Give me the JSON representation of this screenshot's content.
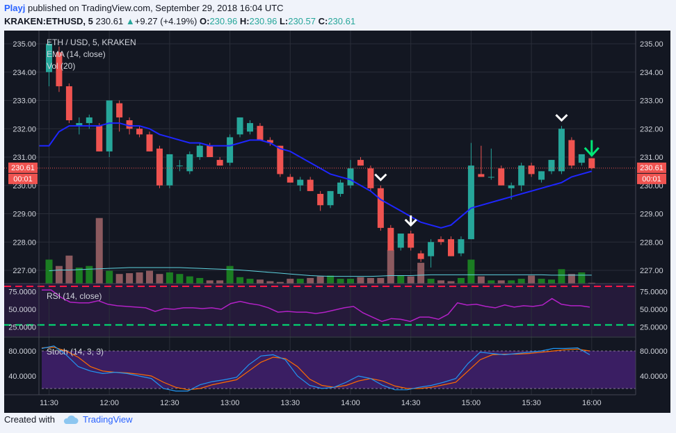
{
  "header": {
    "user": "Playj",
    "published": " published on TradingView.com, September 29, 2018 16:04 UTC",
    "symbol": "KRAKEN:ETHUSD, 5",
    "price": "230.61",
    "change_arrow": "▲",
    "change": "+9.27 (+4.19%)",
    "o_label": "O:",
    "o": "230.96",
    "h_label": "H:",
    "h": "230.96",
    "l_label": "L:",
    "l": "230.57",
    "c_label": "C:",
    "c": "230.61"
  },
  "footer": {
    "created_with": "Created with",
    "brand": "TradingView",
    "brand_icon": "cloud-logo-icon"
  },
  "colors": {
    "background": "#131722",
    "bull": "#26a69a",
    "bear": "#ef5350",
    "ema": "#1e26ff",
    "rsi": "#b321c7",
    "stoch_k": "#2196f3",
    "stoch_d": "#ff6d00",
    "vol_up": "#1b7d22",
    "vol_down": "#8c5a5f"
  },
  "chart_data": {
    "type": "candlestick",
    "title": "ETH / USD, 5, KRAKEN",
    "indicators": [
      "EMA (14, close)",
      "Vol (20)"
    ],
    "price_ylim": [
      226.6,
      235.3
    ],
    "price_ticks": [
      "235.00",
      "234.00",
      "233.00",
      "232.00",
      "231.00",
      "230.00",
      "229.00",
      "228.00",
      "227.00"
    ],
    "last_price_label": "230.61",
    "countdown_label": "00:01",
    "x_ticks": [
      "11:30",
      "12:00",
      "12:30",
      "13:00",
      "13:30",
      "14:00",
      "14:30",
      "15:00",
      "15:30",
      "16:00"
    ],
    "candles": [
      {
        "time": "11:30",
        "o": 234.0,
        "h": 235.1,
        "l": 233.5,
        "c": 235.0
      },
      {
        "time": "11:35",
        "o": 234.7,
        "h": 234.9,
        "l": 233.3,
        "c": 233.5
      },
      {
        "time": "11:40",
        "o": 233.5,
        "h": 233.6,
        "l": 232.2,
        "c": 232.3
      },
      {
        "time": "11:45",
        "o": 232.1,
        "h": 232.4,
        "l": 231.8,
        "c": 232.2
      },
      {
        "time": "11:50",
        "o": 232.2,
        "h": 232.5,
        "l": 232.0,
        "c": 232.4
      },
      {
        "time": "11:55",
        "o": 232.1,
        "h": 232.2,
        "l": 231.2,
        "c": 231.2
      },
      {
        "time": "12:00",
        "o": 231.2,
        "h": 233.0,
        "l": 231.0,
        "c": 233.0
      },
      {
        "time": "12:05",
        "o": 232.9,
        "h": 233.0,
        "l": 231.9,
        "c": 232.4
      },
      {
        "time": "12:10",
        "o": 232.3,
        "h": 232.4,
        "l": 231.8,
        "c": 232.0
      },
      {
        "time": "12:15",
        "o": 232.0,
        "h": 232.1,
        "l": 231.7,
        "c": 231.8
      },
      {
        "time": "12:20",
        "o": 231.8,
        "h": 231.9,
        "l": 231.2,
        "c": 231.2
      },
      {
        "time": "12:25",
        "o": 231.3,
        "h": 231.4,
        "l": 229.9,
        "c": 230.0
      },
      {
        "time": "12:30",
        "o": 230.0,
        "h": 231.1,
        "l": 229.9,
        "c": 231.1
      },
      {
        "time": "12:35",
        "o": 230.7,
        "h": 230.9,
        "l": 230.5,
        "c": 230.7
      },
      {
        "time": "12:40",
        "o": 230.5,
        "h": 231.2,
        "l": 230.4,
        "c": 231.1
      },
      {
        "time": "12:45",
        "o": 231.0,
        "h": 231.5,
        "l": 230.9,
        "c": 231.4
      },
      {
        "time": "12:50",
        "o": 231.4,
        "h": 231.5,
        "l": 231.0,
        "c": 231.0
      },
      {
        "time": "12:55",
        "o": 230.9,
        "h": 231.0,
        "l": 230.7,
        "c": 230.7
      },
      {
        "time": "13:00",
        "o": 230.8,
        "h": 231.8,
        "l": 230.7,
        "c": 231.7
      },
      {
        "time": "13:05",
        "o": 231.8,
        "h": 232.4,
        "l": 231.7,
        "c": 232.4
      },
      {
        "time": "13:10",
        "o": 231.9,
        "h": 232.3,
        "l": 231.8,
        "c": 232.2
      },
      {
        "time": "13:15",
        "o": 232.1,
        "h": 232.2,
        "l": 231.6,
        "c": 231.6
      },
      {
        "time": "13:20",
        "o": 231.6,
        "h": 231.7,
        "l": 231.4,
        "c": 231.5
      },
      {
        "time": "13:25",
        "o": 231.4,
        "h": 231.4,
        "l": 230.3,
        "c": 230.4
      },
      {
        "time": "13:30",
        "o": 230.3,
        "h": 230.4,
        "l": 230.1,
        "c": 230.1
      },
      {
        "time": "13:35",
        "o": 230.0,
        "h": 230.3,
        "l": 229.8,
        "c": 230.2
      },
      {
        "time": "13:40",
        "o": 230.2,
        "h": 230.3,
        "l": 229.8,
        "c": 229.8
      },
      {
        "time": "13:45",
        "o": 229.7,
        "h": 229.8,
        "l": 229.1,
        "c": 229.3
      },
      {
        "time": "13:50",
        "o": 229.3,
        "h": 229.8,
        "l": 229.2,
        "c": 229.8
      },
      {
        "time": "13:55",
        "o": 229.7,
        "h": 230.2,
        "l": 229.6,
        "c": 230.1
      },
      {
        "time": "14:00",
        "o": 230.0,
        "h": 230.9,
        "l": 229.9,
        "c": 230.6
      },
      {
        "time": "14:05",
        "o": 230.9,
        "h": 231.0,
        "l": 230.7,
        "c": 230.7
      },
      {
        "time": "14:10",
        "o": 230.6,
        "h": 230.7,
        "l": 229.8,
        "c": 229.9
      },
      {
        "time": "14:15",
        "o": 229.9,
        "h": 230.0,
        "l": 228.4,
        "c": 228.5
      },
      {
        "time": "14:20",
        "o": 228.5,
        "h": 228.6,
        "l": 227.7,
        "c": 227.7
      },
      {
        "time": "14:25",
        "o": 227.8,
        "h": 228.3,
        "l": 227.7,
        "c": 228.3
      },
      {
        "time": "14:30",
        "o": 228.3,
        "h": 228.4,
        "l": 227.7,
        "c": 227.8
      },
      {
        "time": "14:35",
        "o": 227.6,
        "h": 227.7,
        "l": 227.3,
        "c": 227.4
      },
      {
        "time": "14:40",
        "o": 227.5,
        "h": 228.1,
        "l": 227.1,
        "c": 228.0
      },
      {
        "time": "14:45",
        "o": 228.1,
        "h": 228.2,
        "l": 227.9,
        "c": 228.0
      },
      {
        "time": "14:50",
        "o": 228.1,
        "h": 228.2,
        "l": 227.5,
        "c": 227.5
      },
      {
        "time": "14:55",
        "o": 227.6,
        "h": 228.2,
        "l": 227.5,
        "c": 228.1
      },
      {
        "time": "15:00",
        "o": 228.1,
        "h": 231.5,
        "l": 228.1,
        "c": 230.7
      },
      {
        "time": "15:05",
        "o": 230.4,
        "h": 231.4,
        "l": 230.3,
        "c": 230.3
      },
      {
        "time": "15:10",
        "o": 230.3,
        "h": 231.3,
        "l": 230.2,
        "c": 230.3
      },
      {
        "time": "15:15",
        "o": 230.6,
        "h": 230.7,
        "l": 230.0,
        "c": 230.0
      },
      {
        "time": "15:20",
        "o": 229.9,
        "h": 230.1,
        "l": 229.5,
        "c": 230.0
      },
      {
        "time": "15:25",
        "o": 230.0,
        "h": 230.8,
        "l": 229.8,
        "c": 230.7
      },
      {
        "time": "15:30",
        "o": 230.7,
        "h": 230.8,
        "l": 230.3,
        "c": 230.4
      },
      {
        "time": "15:35",
        "o": 230.2,
        "h": 230.5,
        "l": 230.1,
        "c": 230.5
      },
      {
        "time": "15:40",
        "o": 230.5,
        "h": 230.9,
        "l": 230.4,
        "c": 230.9
      },
      {
        "time": "15:45",
        "o": 230.5,
        "h": 232.1,
        "l": 230.4,
        "c": 232.0
      },
      {
        "time": "15:50",
        "o": 231.6,
        "h": 231.7,
        "l": 230.6,
        "c": 230.7
      },
      {
        "time": "15:55",
        "o": 230.8,
        "h": 231.1,
        "l": 230.7,
        "c": 231.1
      },
      {
        "time": "16:00",
        "o": 230.96,
        "h": 230.96,
        "l": 230.57,
        "c": 230.61
      }
    ],
    "ema": [
      231.4,
      231.9,
      232.1,
      232.1,
      232.1,
      232.1,
      232.2,
      232.2,
      232.1,
      232.1,
      232.0,
      231.8,
      231.7,
      231.6,
      231.5,
      231.5,
      231.4,
      231.4,
      231.4,
      231.5,
      231.6,
      231.6,
      231.5,
      231.3,
      231.2,
      231.0,
      230.8,
      230.6,
      230.4,
      230.3,
      230.2,
      230.0,
      229.8,
      229.5,
      229.3,
      229.1,
      228.9,
      228.7,
      228.6,
      228.5,
      228.6,
      228.9,
      229.2,
      229.3,
      229.4,
      229.5,
      229.6,
      229.7,
      229.8,
      229.9,
      230.0,
      230.1,
      230.3,
      230.4,
      230.5
    ],
    "volume": [
      3.0,
      2.2,
      3.5,
      2.0,
      2.2,
      1.9,
      1.6,
      1.2,
      1.3,
      1.4,
      1.6,
      1.2,
      1.4,
      1.2,
      0.9,
      0.7,
      0.4,
      0.4,
      2.2,
      0.8,
      0.6,
      0.5,
      0.3,
      0.2,
      0.6,
      0.6,
      0.7,
      0.9,
      1.0,
      0.6,
      0.6,
      0.8,
      0.7,
      0.7,
      4.2,
      1.0,
      0.9,
      2.6,
      0.6,
      0.4,
      0.3,
      0.7,
      3.0,
      0.9,
      0.4,
      0.4,
      0.4,
      0.6,
      1.0,
      0.6,
      0.5,
      1.8,
      1.2,
      1.4,
      0.1
    ],
    "volume_big": {
      "index": 5,
      "value": 8.2
    },
    "volume_ma": [
      1.6,
      1.7,
      1.7,
      1.75,
      1.8,
      1.85,
      1.9,
      1.95,
      2.0,
      2.0,
      2.0,
      2.0,
      2.0,
      2.0,
      1.95,
      1.9,
      1.85,
      1.8,
      1.75,
      1.7,
      1.6,
      1.5,
      1.4,
      1.3,
      1.2,
      1.1,
      1.0,
      0.95,
      0.9,
      0.9,
      0.9,
      0.9,
      0.9,
      0.95,
      1.0,
      1.0,
      1.0,
      1.05,
      1.1,
      1.1,
      1.1,
      1.1,
      1.1,
      1.1,
      1.1,
      1.1,
      1.1,
      1.1,
      1.1,
      1.1,
      1.05,
      1.05,
      1.05,
      1.05,
      1.05
    ],
    "rsi": {
      "label": "RSI (14, close)",
      "ylim": [
        12,
        86
      ],
      "ticks": [
        "75.0000",
        "50.0000",
        "25.0000"
      ],
      "upper": 70,
      "lower": 30,
      "values": [
        77,
        77,
        67,
        60,
        59,
        59,
        62,
        57,
        55,
        54,
        53,
        52,
        47,
        51,
        50,
        52,
        52,
        51,
        52,
        50,
        58,
        61,
        58,
        56,
        52,
        46,
        47,
        46,
        46,
        44,
        46,
        49,
        52,
        54,
        45,
        39,
        33,
        37,
        36,
        33,
        39,
        39,
        36,
        43,
        59,
        56,
        57,
        54,
        52,
        56,
        53,
        55,
        54,
        56,
        65,
        57,
        55,
        55,
        53
      ]
    },
    "stoch": {
      "label": "Stoch (14, 3, 3)",
      "ylim": [
        10,
        100
      ],
      "ticks": [
        "80.0000",
        "40.0000"
      ],
      "upper": 80,
      "lower": 20,
      "k": [
        84,
        88,
        74,
        55,
        48,
        44,
        46,
        44,
        40,
        36,
        20,
        16,
        16,
        26,
        31,
        34,
        38,
        58,
        72,
        74,
        66,
        40,
        25,
        20,
        22,
        30,
        40,
        36,
        25,
        18,
        18,
        22,
        25,
        30,
        36,
        60,
        78,
        76,
        74,
        76,
        78,
        80,
        84,
        84,
        85,
        74
      ],
      "d": [
        85,
        86,
        80,
        70,
        55,
        48,
        46,
        45,
        43,
        40,
        30,
        22,
        18,
        20,
        26,
        30,
        34,
        48,
        62,
        70,
        68,
        55,
        35,
        25,
        22,
        25,
        32,
        36,
        32,
        24,
        20,
        20,
        22,
        26,
        30,
        48,
        66,
        74,
        75,
        75,
        76,
        78,
        80,
        82,
        83,
        80
      ]
    },
    "annotations": [
      {
        "type": "arrow-down",
        "color": "#ffffff",
        "at": "14:15"
      },
      {
        "type": "arrow-down",
        "color": "#ffffff",
        "at": "14:30"
      },
      {
        "type": "arrow-down",
        "color": "#ffffff",
        "at": "15:45"
      },
      {
        "type": "arrow-down",
        "color": "#00e676",
        "at": "16:00"
      }
    ]
  }
}
